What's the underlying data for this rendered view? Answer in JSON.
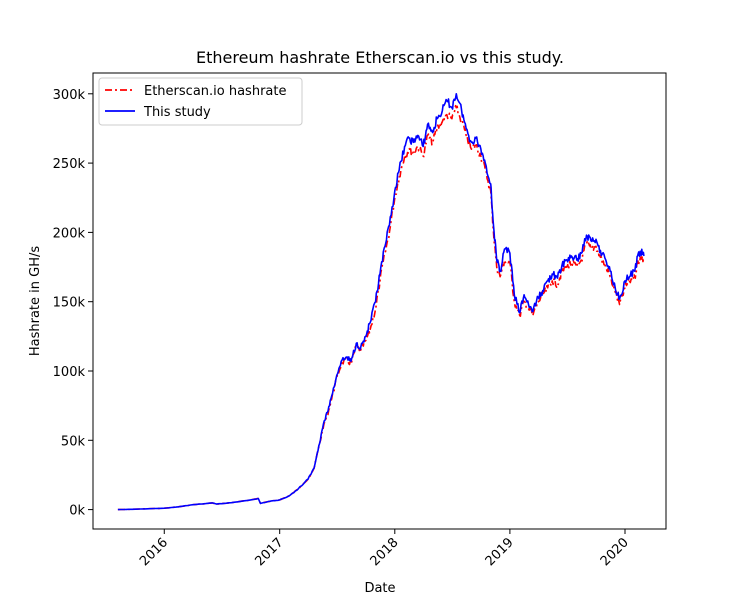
{
  "chart_data": {
    "type": "line",
    "title": "Ethereum hashrate Etherscan.io vs this study.",
    "xlabel": "Date",
    "ylabel": "Hashrate in GH/s",
    "xlim": [
      "2015-05-20",
      "2020-05-10"
    ],
    "ylim": [
      -14000,
      315000
    ],
    "x_ticks": [
      {
        "date": "2016-01-01",
        "label": "2016"
      },
      {
        "date": "2017-01-01",
        "label": "2017"
      },
      {
        "date": "2018-01-01",
        "label": "2018"
      },
      {
        "date": "2019-01-01",
        "label": "2019"
      },
      {
        "date": "2020-01-01",
        "label": "2020"
      }
    ],
    "y_ticks": [
      {
        "value": 0,
        "label": "0k"
      },
      {
        "value": 50000,
        "label": "50k"
      },
      {
        "value": 100000,
        "label": "100k"
      },
      {
        "value": 150000,
        "label": "150k"
      },
      {
        "value": 200000,
        "label": "200k"
      },
      {
        "value": 250000,
        "label": "250k"
      },
      {
        "value": 300000,
        "label": "300k"
      }
    ],
    "grid": false,
    "legend": {
      "position": "top-left"
    },
    "series": [
      {
        "name": "Etherscan.io hashrate",
        "color": "#ff0000",
        "style": "dashdot",
        "points": [
          [
            "2015-08-07",
            0
          ],
          [
            "2015-10-01",
            300
          ],
          [
            "2016-01-01",
            1000
          ],
          [
            "2016-02-15",
            2000
          ],
          [
            "2016-04-01",
            3500
          ],
          [
            "2016-06-01",
            4800
          ],
          [
            "2016-06-15",
            4000
          ],
          [
            "2016-08-01",
            5000
          ],
          [
            "2016-10-01",
            7000
          ],
          [
            "2016-10-25",
            8000
          ],
          [
            "2016-11-01",
            4500
          ],
          [
            "2016-12-01",
            6000
          ],
          [
            "2017-01-01",
            7000
          ],
          [
            "2017-02-01",
            10000
          ],
          [
            "2017-03-01",
            15000
          ],
          [
            "2017-04-01",
            22000
          ],
          [
            "2017-04-20",
            30000
          ],
          [
            "2017-05-05",
            45000
          ],
          [
            "2017-05-20",
            60000
          ],
          [
            "2017-06-01",
            68000
          ],
          [
            "2017-06-15",
            80000
          ],
          [
            "2017-07-01",
            95000
          ],
          [
            "2017-07-15",
            105000
          ],
          [
            "2017-08-01",
            108000
          ],
          [
            "2017-08-15",
            105000
          ],
          [
            "2017-09-01",
            118000
          ],
          [
            "2017-09-15",
            115000
          ],
          [
            "2017-10-01",
            122000
          ],
          [
            "2017-10-15",
            130000
          ],
          [
            "2017-11-01",
            145000
          ],
          [
            "2017-11-15",
            165000
          ],
          [
            "2017-12-01",
            185000
          ],
          [
            "2017-12-15",
            200000
          ],
          [
            "2018-01-01",
            225000
          ],
          [
            "2018-01-15",
            240000
          ],
          [
            "2018-02-01",
            255000
          ],
          [
            "2018-02-15",
            260000
          ],
          [
            "2018-03-01",
            258000
          ],
          [
            "2018-03-15",
            262000
          ],
          [
            "2018-04-01",
            255000
          ],
          [
            "2018-04-15",
            270000
          ],
          [
            "2018-05-01",
            265000
          ],
          [
            "2018-05-15",
            275000
          ],
          [
            "2018-06-01",
            280000
          ],
          [
            "2018-06-15",
            285000
          ],
          [
            "2018-07-01",
            282000
          ],
          [
            "2018-07-15",
            290000
          ],
          [
            "2018-08-01",
            280000
          ],
          [
            "2018-08-15",
            270000
          ],
          [
            "2018-09-01",
            260000
          ],
          [
            "2018-09-15",
            263000
          ],
          [
            "2018-10-01",
            255000
          ],
          [
            "2018-10-15",
            245000
          ],
          [
            "2018-11-01",
            230000
          ],
          [
            "2018-11-10",
            200000
          ],
          [
            "2018-11-20",
            175000
          ],
          [
            "2018-12-01",
            168000
          ],
          [
            "2018-12-15",
            180000
          ],
          [
            "2019-01-01",
            178000
          ],
          [
            "2019-01-15",
            150000
          ],
          [
            "2019-02-01",
            140000
          ],
          [
            "2019-02-15",
            150000
          ],
          [
            "2019-03-01",
            145000
          ],
          [
            "2019-03-15",
            140000
          ],
          [
            "2019-04-01",
            150000
          ],
          [
            "2019-04-15",
            155000
          ],
          [
            "2019-05-01",
            160000
          ],
          [
            "2019-05-15",
            165000
          ],
          [
            "2019-06-01",
            163000
          ],
          [
            "2019-06-15",
            172000
          ],
          [
            "2019-07-01",
            175000
          ],
          [
            "2019-07-15",
            178000
          ],
          [
            "2019-08-01",
            175000
          ],
          [
            "2019-08-15",
            180000
          ],
          [
            "2019-09-01",
            192000
          ],
          [
            "2019-09-15",
            188000
          ],
          [
            "2019-10-01",
            190000
          ],
          [
            "2019-10-15",
            182000
          ],
          [
            "2019-11-01",
            175000
          ],
          [
            "2019-11-15",
            168000
          ],
          [
            "2019-12-01",
            157000
          ],
          [
            "2019-12-15",
            148000
          ],
          [
            "2020-01-01",
            160000
          ],
          [
            "2020-01-15",
            165000
          ],
          [
            "2020-02-01",
            168000
          ],
          [
            "2020-02-10",
            178000
          ],
          [
            "2020-02-20",
            182000
          ],
          [
            "2020-03-01",
            180000
          ]
        ]
      },
      {
        "name": "This study",
        "color": "#0000ff",
        "style": "solid",
        "points": [
          [
            "2015-08-07",
            0
          ],
          [
            "2015-10-01",
            300
          ],
          [
            "2016-01-01",
            1000
          ],
          [
            "2016-02-15",
            2000
          ],
          [
            "2016-04-01",
            3500
          ],
          [
            "2016-06-01",
            4800
          ],
          [
            "2016-06-15",
            4000
          ],
          [
            "2016-08-01",
            5000
          ],
          [
            "2016-10-01",
            7000
          ],
          [
            "2016-10-25",
            8000
          ],
          [
            "2016-11-01",
            4500
          ],
          [
            "2016-12-01",
            6000
          ],
          [
            "2017-01-01",
            7000
          ],
          [
            "2017-02-01",
            10000
          ],
          [
            "2017-03-01",
            15000
          ],
          [
            "2017-04-01",
            22000
          ],
          [
            "2017-04-20",
            30000
          ],
          [
            "2017-05-05",
            46000
          ],
          [
            "2017-05-20",
            62000
          ],
          [
            "2017-06-01",
            70000
          ],
          [
            "2017-06-15",
            82000
          ],
          [
            "2017-07-01",
            97000
          ],
          [
            "2017-07-15",
            107000
          ],
          [
            "2017-08-01",
            110000
          ],
          [
            "2017-08-15",
            107000
          ],
          [
            "2017-09-01",
            120000
          ],
          [
            "2017-09-15",
            117000
          ],
          [
            "2017-10-01",
            125000
          ],
          [
            "2017-10-15",
            135000
          ],
          [
            "2017-11-01",
            150000
          ],
          [
            "2017-11-15",
            170000
          ],
          [
            "2017-12-01",
            190000
          ],
          [
            "2017-12-15",
            205000
          ],
          [
            "2018-01-01",
            230000
          ],
          [
            "2018-01-15",
            245000
          ],
          [
            "2018-02-01",
            262000
          ],
          [
            "2018-02-15",
            268000
          ],
          [
            "2018-03-01",
            265000
          ],
          [
            "2018-03-15",
            270000
          ],
          [
            "2018-04-01",
            262000
          ],
          [
            "2018-04-15",
            278000
          ],
          [
            "2018-05-01",
            272000
          ],
          [
            "2018-05-15",
            282000
          ],
          [
            "2018-06-01",
            288000
          ],
          [
            "2018-06-15",
            295000
          ],
          [
            "2018-07-01",
            290000
          ],
          [
            "2018-07-15",
            300000
          ],
          [
            "2018-08-01",
            288000
          ],
          [
            "2018-08-15",
            275000
          ],
          [
            "2018-09-01",
            265000
          ],
          [
            "2018-09-15",
            268000
          ],
          [
            "2018-10-01",
            260000
          ],
          [
            "2018-10-15",
            250000
          ],
          [
            "2018-11-01",
            235000
          ],
          [
            "2018-11-10",
            205000
          ],
          [
            "2018-11-20",
            180000
          ],
          [
            "2018-12-01",
            172000
          ],
          [
            "2018-12-15",
            188000
          ],
          [
            "2019-01-01",
            185000
          ],
          [
            "2019-01-15",
            155000
          ],
          [
            "2019-02-01",
            142000
          ],
          [
            "2019-02-15",
            155000
          ],
          [
            "2019-03-01",
            148000
          ],
          [
            "2019-03-15",
            143000
          ],
          [
            "2019-04-01",
            153000
          ],
          [
            "2019-04-15",
            158000
          ],
          [
            "2019-05-01",
            165000
          ],
          [
            "2019-05-15",
            170000
          ],
          [
            "2019-06-01",
            167000
          ],
          [
            "2019-06-15",
            176000
          ],
          [
            "2019-07-01",
            180000
          ],
          [
            "2019-07-15",
            183000
          ],
          [
            "2019-08-01",
            180000
          ],
          [
            "2019-08-15",
            185000
          ],
          [
            "2019-09-01",
            198000
          ],
          [
            "2019-09-15",
            194000
          ],
          [
            "2019-10-01",
            195000
          ],
          [
            "2019-10-15",
            187000
          ],
          [
            "2019-11-01",
            180000
          ],
          [
            "2019-11-15",
            172000
          ],
          [
            "2019-12-01",
            160000
          ],
          [
            "2019-12-15",
            152000
          ],
          [
            "2020-01-01",
            165000
          ],
          [
            "2020-01-15",
            168000
          ],
          [
            "2020-02-01",
            172000
          ],
          [
            "2020-02-10",
            183000
          ],
          [
            "2020-02-20",
            186000
          ],
          [
            "2020-03-01",
            183000
          ]
        ]
      }
    ]
  }
}
